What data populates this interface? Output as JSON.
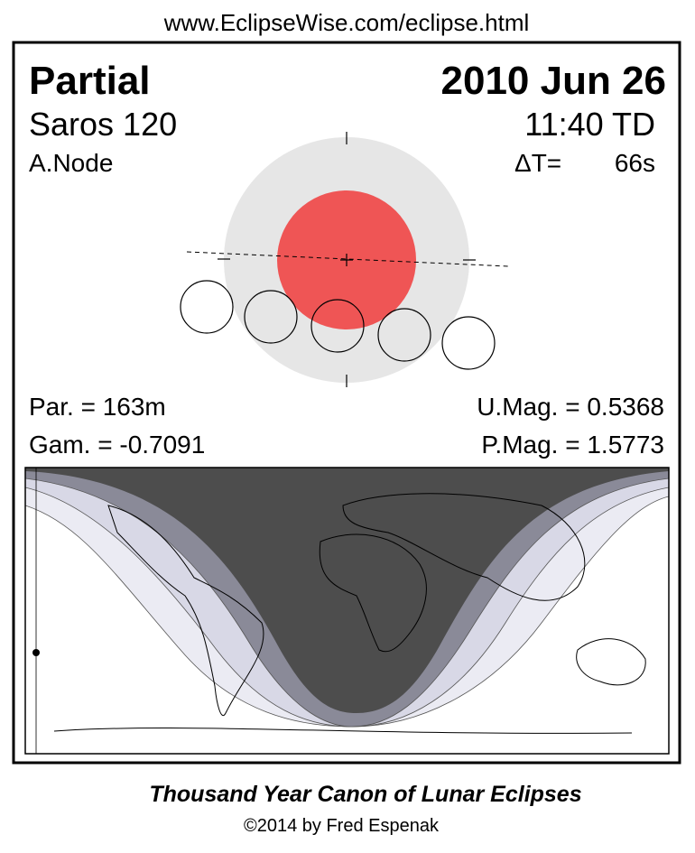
{
  "header": {
    "url": "www.EclipseWise.com/eclipse.html"
  },
  "eclipse": {
    "type": "Partial",
    "date": "2010 Jun 26",
    "saros": "Saros 120",
    "time": "11:40 TD",
    "node": "A.Node",
    "delta_t_label": "ΔT=",
    "delta_t_value": "66s"
  },
  "stats": {
    "par": "Par. = 163m",
    "gam": "Gam. = -0.7091",
    "umag": "U.Mag. = 0.5368",
    "pmag": "P.Mag. = 1.5773"
  },
  "footer": {
    "title": "Thousand Year Canon of Lunar Eclipses",
    "credit": "©2014 by Fred Espenak"
  }
}
